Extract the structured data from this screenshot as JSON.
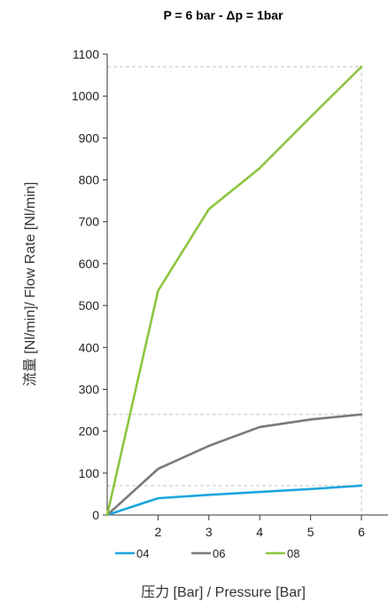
{
  "chart_data": {
    "type": "line",
    "title": "P = 6 bar - Δp = 1bar",
    "xlabel": "压力 [Bar] / Pressure [Bar]",
    "ylabel": "流量 [Nl/min]/ Flow Rate [Nl/min]",
    "xlim": [
      1,
      6.5
    ],
    "ylim": [
      0,
      1100
    ],
    "x_ticks": [
      2,
      3,
      4,
      5,
      6
    ],
    "y_ticks": [
      0,
      100,
      200,
      300,
      400,
      500,
      600,
      700,
      800,
      900,
      1000,
      1100
    ],
    "x": [
      1,
      2,
      3,
      4,
      5,
      6
    ],
    "series": [
      {
        "name": "04",
        "color": "#1aa6dd",
        "values": [
          0,
          40,
          48,
          55,
          62,
          70
        ]
      },
      {
        "name": "06",
        "color": "#7a7a7a",
        "values": [
          0,
          110,
          165,
          210,
          228,
          240
        ]
      },
      {
        "name": "08",
        "color": "#8cc63f",
        "values": [
          0,
          535,
          730,
          828,
          950,
          1070
        ]
      }
    ],
    "reference_lines": [
      {
        "y": 70,
        "x": 6
      },
      {
        "y": 240,
        "x": 6
      },
      {
        "y": 1070,
        "x": 6
      }
    ],
    "grid": false,
    "legend_position": "bottom"
  }
}
